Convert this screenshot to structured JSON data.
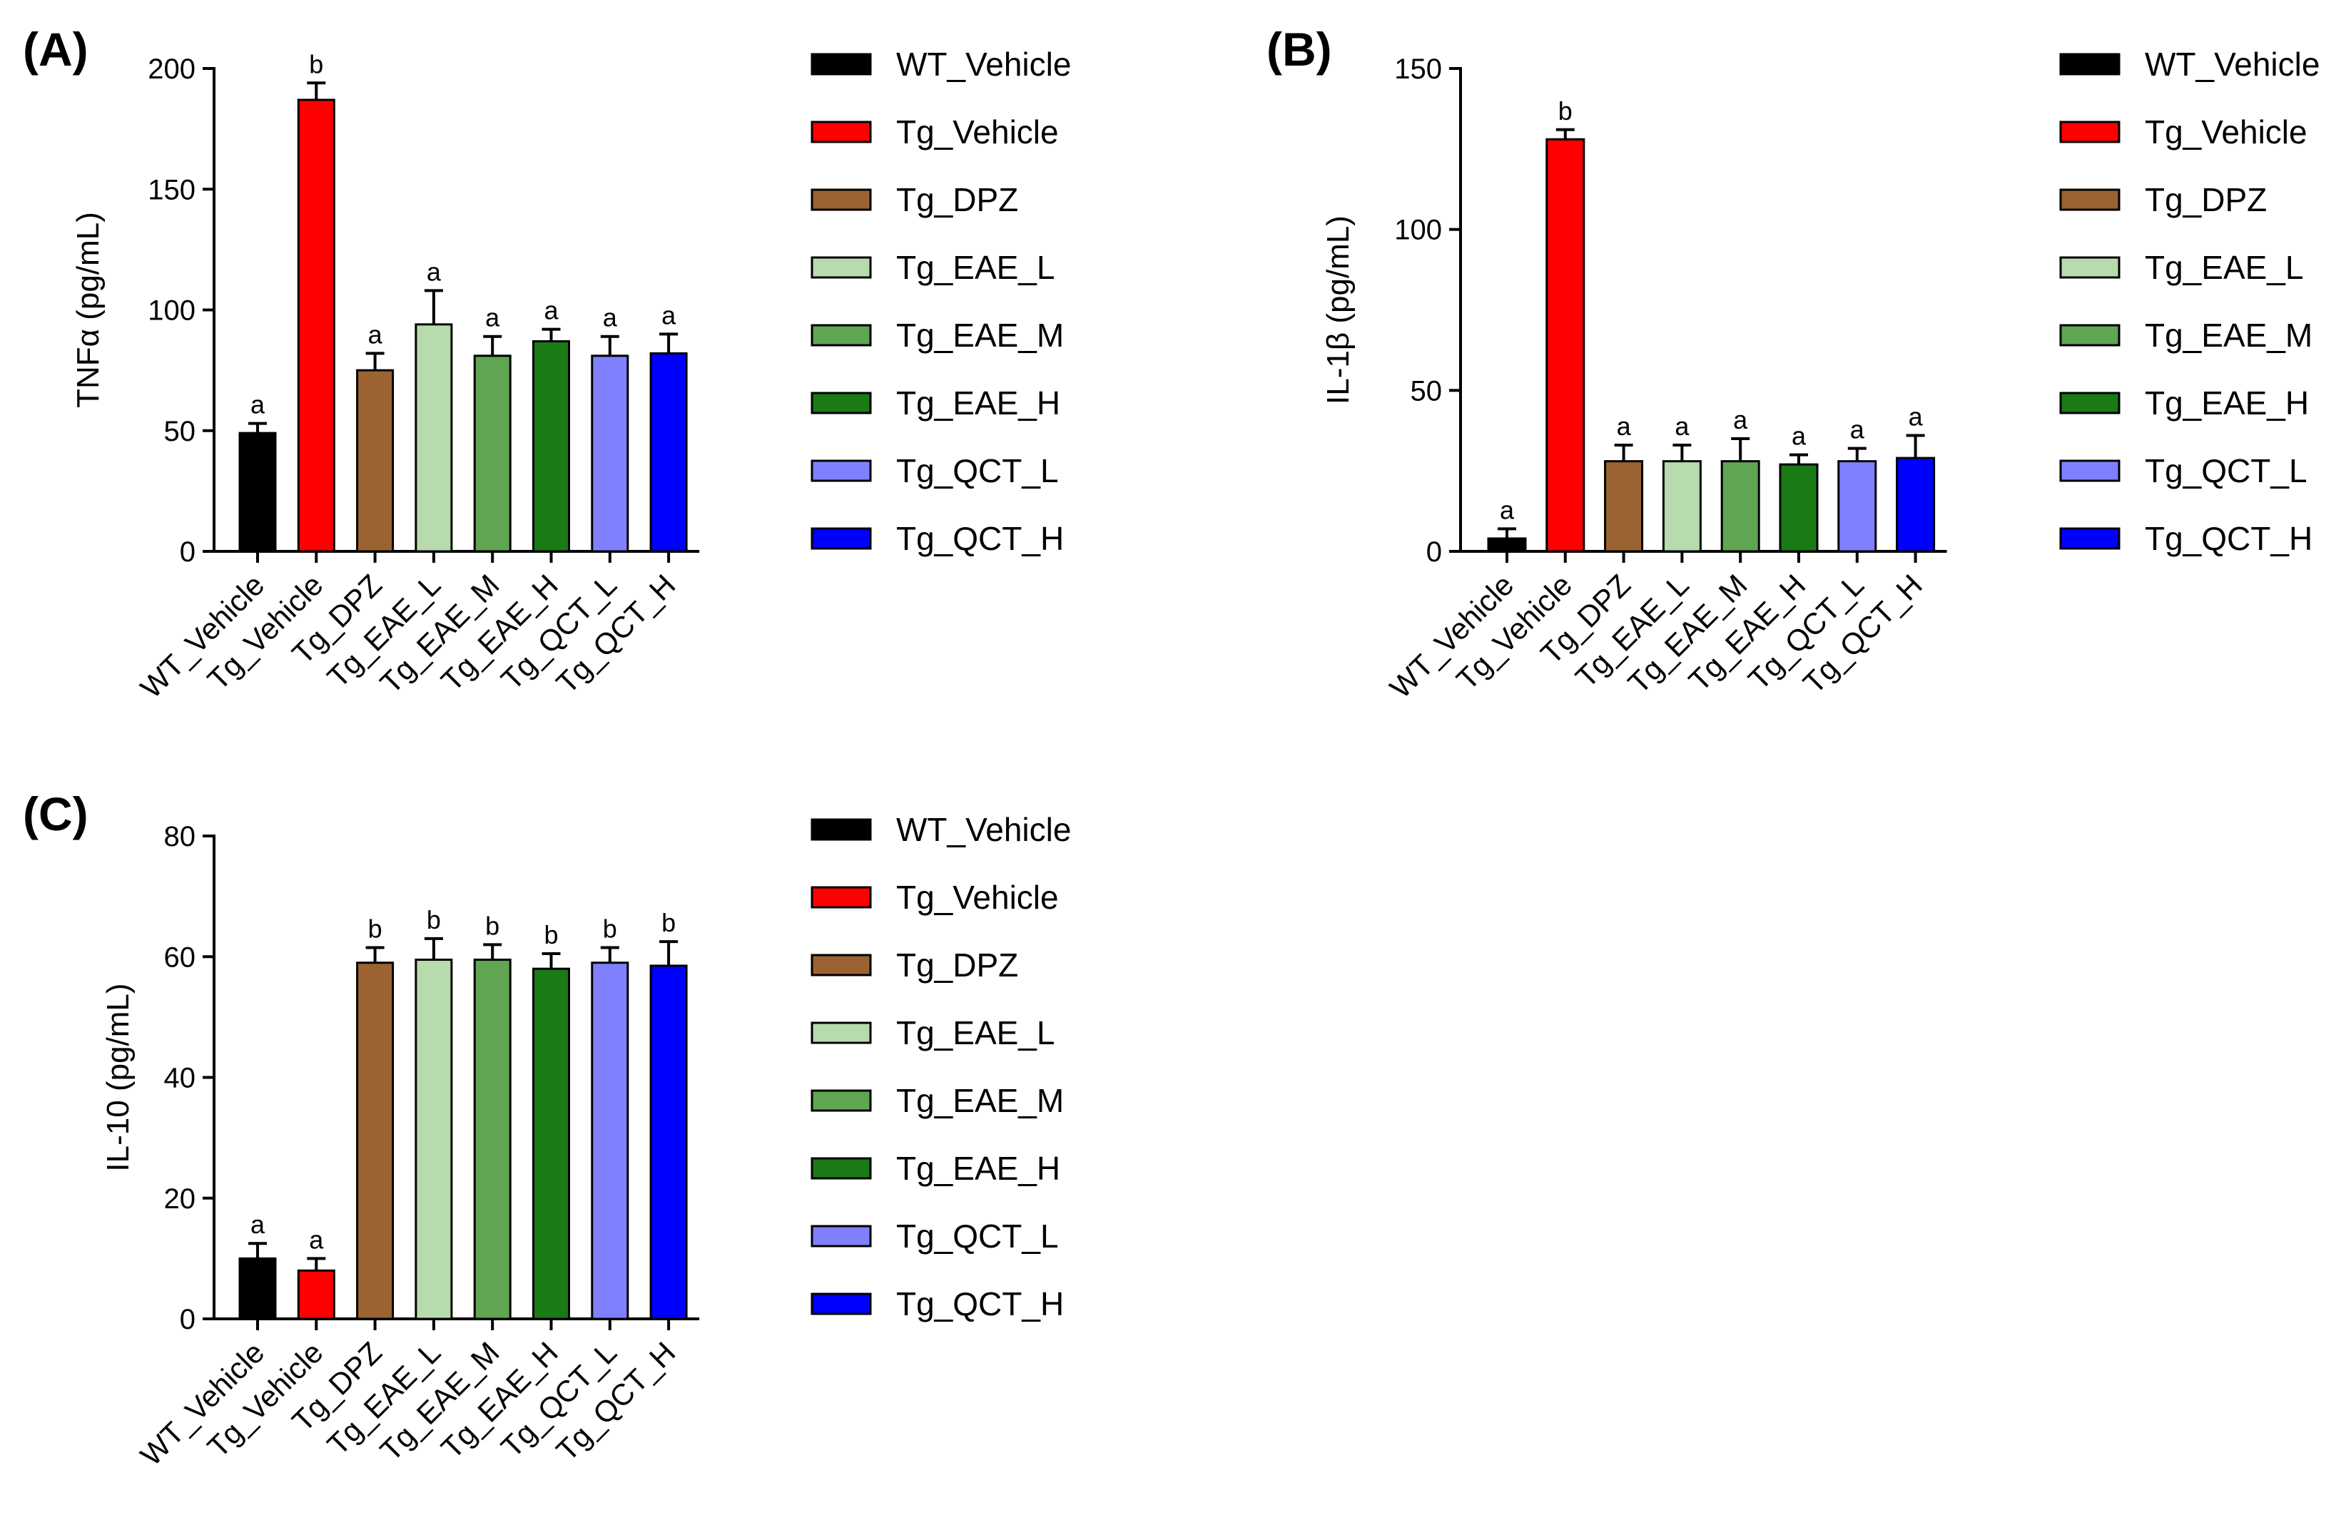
{
  "chart_data": [
    {
      "type": "bar",
      "panel_label": "(A)",
      "ylabel": "TNFα (pg/mL)",
      "ylim": [
        0,
        200
      ],
      "yticks": [
        0,
        50,
        100,
        150,
        200
      ],
      "categories": [
        "WT_Vehicle",
        "Tg_Vehicle",
        "Tg_DPZ",
        "Tg_EAE_L",
        "Tg_EAE_M",
        "Tg_EAE_H",
        "Tg_QCT_L",
        "Tg_QCT_H"
      ],
      "values": [
        49,
        187,
        75,
        94,
        81,
        87,
        81,
        82
      ],
      "errors": [
        4,
        7,
        7,
        14,
        8,
        5,
        8,
        8
      ],
      "significance": [
        "a",
        "b",
        "a",
        "a",
        "a",
        "a",
        "a",
        "a"
      ],
      "colors": [
        "#000000",
        "#ff0000",
        "#9b6331",
        "#b7dbac",
        "#5fa552",
        "#1a7a16",
        "#8080ff",
        "#0000ff"
      ],
      "legend": [
        "WT_Vehicle",
        "Tg_Vehicle",
        "Tg_DPZ",
        "Tg_EAE_L",
        "Tg_EAE_M",
        "Tg_EAE_H",
        "Tg_QCT_L",
        "Tg_QCT_H"
      ],
      "legend_placement": "right"
    },
    {
      "type": "bar",
      "panel_label": "(B)",
      "ylabel": "IL-1β (pg/mL)",
      "ylim": [
        0,
        150
      ],
      "yticks": [
        0,
        50,
        100,
        150
      ],
      "categories": [
        "WT_Vehicle",
        "Tg_Vehicle",
        "Tg_DPZ",
        "Tg_EAE_L",
        "Tg_EAE_M",
        "Tg_EAE_H",
        "Tg_QCT_L",
        "Tg_QCT_H"
      ],
      "values": [
        4,
        128,
        28,
        28,
        28,
        27,
        28,
        29
      ],
      "errors": [
        3,
        3,
        5,
        5,
        7,
        3,
        4,
        7
      ],
      "significance": [
        "a",
        "b",
        "a",
        "a",
        "a",
        "a",
        "a",
        "a"
      ],
      "colors": [
        "#000000",
        "#ff0000",
        "#9b6331",
        "#b7dbac",
        "#5fa552",
        "#1a7a16",
        "#8080ff",
        "#0000ff"
      ],
      "legend": [
        "WT_Vehicle",
        "Tg_Vehicle",
        "Tg_DPZ",
        "Tg_EAE_L",
        "Tg_EAE_M",
        "Tg_EAE_H",
        "Tg_QCT_L",
        "Tg_QCT_H"
      ],
      "legend_placement": "right"
    },
    {
      "type": "bar",
      "panel_label": "(C)",
      "ylabel": "IL-10 (pg/mL)",
      "ylim": [
        0,
        80
      ],
      "yticks": [
        0,
        20,
        40,
        60,
        80
      ],
      "categories": [
        "WT_Vehicle",
        "Tg_Vehicle",
        "Tg_DPZ",
        "Tg_EAE_L",
        "Tg_EAE_M",
        "Tg_EAE_H",
        "Tg_QCT_L",
        "Tg_QCT_H"
      ],
      "values": [
        10,
        8,
        59,
        59.5,
        59.5,
        58,
        59,
        58.5
      ],
      "errors": [
        2.5,
        2,
        2.5,
        3.5,
        2.5,
        2.5,
        2.5,
        4
      ],
      "significance": [
        "a",
        "a",
        "b",
        "b",
        "b",
        "b",
        "b",
        "b"
      ],
      "colors": [
        "#000000",
        "#ff0000",
        "#9b6331",
        "#b7dbac",
        "#5fa552",
        "#1a7a16",
        "#8080ff",
        "#0000ff"
      ],
      "legend": [
        "WT_Vehicle",
        "Tg_Vehicle",
        "Tg_DPZ",
        "Tg_EAE_L",
        "Tg_EAE_M",
        "Tg_EAE_H",
        "Tg_QCT_L",
        "Tg_QCT_H"
      ],
      "legend_placement": "right"
    }
  ]
}
